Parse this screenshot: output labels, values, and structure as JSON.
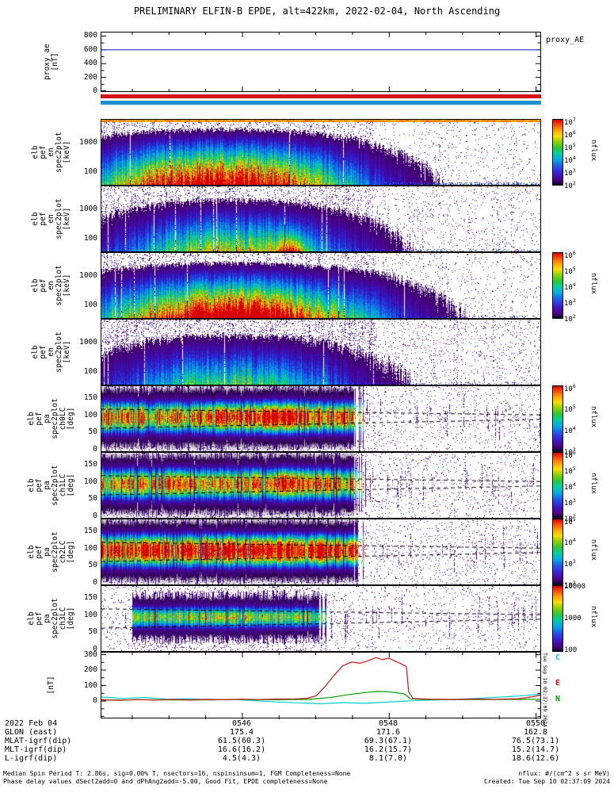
{
  "title": "PRELIMINARY ELFIN-B EPDE, alt=422km, 2022-02-04, North Ascending",
  "side_note": "Tue Sep 10 02:37:09 2024",
  "footer": {
    "left_line1": "Median Spin Period T: 2.86s, sig=0.00% T, nsectors=16, nspinsinsum=1, FGM Completeness=None",
    "left_line2": "Phase delay values dSect2add=0 and dPhAng2add=-5.00, Good Fit, EPDE completeness=None",
    "right_line1": "nflux: #/(cm^2 s sr MeV)",
    "right_line2": "Created: Tue Sep 10 02:37:09 2024"
  },
  "xaxis": {
    "date": "2022 Feb 04",
    "time_ticks": [
      "0546",
      "0548",
      "0550"
    ],
    "rows": [
      {
        "label": "GLON (east)",
        "values": [
          "175.4",
          "171.6",
          "162.8"
        ]
      },
      {
        "label": "MLAT-igrf(dip)",
        "values": [
          "61.5(60.3)",
          "69.3(67.1)",
          "76.5(73.1)"
        ]
      },
      {
        "label": "MLT-igrf(dip)",
        "values": [
          "16.6(16.2)",
          "16.2(15.7)",
          "15.2(14.7)"
        ]
      },
      {
        "label": "L-igrf(dip)",
        "values": [
          "4.5(4.3)",
          "8.1(7.0)",
          "18.6(12.6)"
        ]
      }
    ]
  },
  "chart_data": {
    "type": "multi-panel: line plots + energy/pitch-angle heatmap spectrograms",
    "time_range": [
      "0544",
      "0550"
    ],
    "colorbar_units": "nflux",
    "proxy_panel": {
      "right_label": "proxy_AE",
      "ylabel_lines": [
        "proxy_ae",
        "[nT]"
      ],
      "y_range": [
        0,
        850
      ],
      "yticks": [
        {
          "label": "800",
          "y": 4.4
        },
        {
          "label": "600",
          "y": 21.8
        },
        {
          "label": "400",
          "y": 39.2
        },
        {
          "label": "200",
          "y": 56.6
        },
        {
          "label": "0",
          "y": 73.5
        }
      ],
      "series": [
        {
          "name": "proxy_AE",
          "color": "#2233cc",
          "points": [
            [
              0,
              600
            ],
            [
              1,
              600
            ]
          ]
        }
      ]
    },
    "bars": [
      {
        "name": "red-epoch-bar",
        "color": "#d41414"
      },
      {
        "name": "blue-epoch-bar",
        "color": "#1f8fd0"
      }
    ],
    "spectrograms": [
      {
        "id": "en-ch0",
        "kind": "energy",
        "ylabel_lines": [
          "elb",
          "pef",
          "en",
          "spec2plot",
          "[keV]"
        ],
        "y_range_keV": [
          40,
          6300
        ],
        "yticks": [
          {
            "label": "1000",
            "y": 29
          },
          {
            "label": "100",
            "y": 66
          }
        ],
        "colorbar": {
          "labels": [
            "10^7",
            "10^6",
            "10^5",
            "10^4",
            "10^3",
            "10^2"
          ],
          "title": "nflux"
        },
        "render": {
          "seed": 101,
          "amp": 1.05,
          "xc": 0.27,
          "xw": 0.2,
          "topStripe": true,
          "topDots": 0,
          "noiseHi": 0.1,
          "noiseLo": 0.03,
          "noiseSplit": 0.62,
          "bottomTrail": 0.35,
          "hotspots": []
        }
      },
      {
        "id": "en-ch1",
        "kind": "energy",
        "ylabel_lines": [
          "elb",
          "pef",
          "en",
          "spec2plot",
          "[keV]"
        ],
        "y_range_keV": [
          40,
          6300
        ],
        "yticks": [
          {
            "label": "1000",
            "y": 29
          },
          {
            "label": "100",
            "y": 66
          }
        ],
        "colorbar": null,
        "render": {
          "seed": 202,
          "amp": 0.58,
          "xc": 0.3,
          "xw": 0.18,
          "topStripe": false,
          "topDots": 0.1,
          "noiseHi": 0.12,
          "noiseLo": 0.04,
          "noiseSplit": 0.62,
          "bottomTrail": 0.18,
          "hotspots": [
            {
              "xc": 0.43,
              "xw": 0.022,
              "amp": 0.6
            }
          ]
        }
      },
      {
        "id": "en-ch2",
        "kind": "energy",
        "ylabel_lines": [
          "elb",
          "pef",
          "en",
          "spec2plot",
          "[keV]"
        ],
        "y_range_keV": [
          40,
          6300
        ],
        "yticks": [
          {
            "label": "1000",
            "y": 29
          },
          {
            "label": "100",
            "y": 66
          }
        ],
        "colorbar": {
          "labels": [
            "10^6",
            "10^5",
            "10^4",
            "10^3",
            "10^2"
          ],
          "title": "nflux"
        },
        "render": {
          "seed": 303,
          "amp": 1.0,
          "xc": 0.3,
          "xw": 0.21,
          "topStripe": false,
          "topDots": 0.05,
          "noiseHi": 0.11,
          "noiseLo": 0.035,
          "noiseSplit": 0.62,
          "bottomTrail": 0.15,
          "hotspots": [
            {
              "xc": 0.32,
              "xw": 0.09,
              "amp": 0.3
            }
          ]
        }
      },
      {
        "id": "en-ch3",
        "kind": "energy",
        "ylabel_lines": [
          "elb",
          "pef",
          "en",
          "spec2plot",
          "[keV]"
        ],
        "y_range_keV": [
          40,
          6300
        ],
        "yticks": [
          {
            "label": "1000",
            "y": 29
          },
          {
            "label": "100",
            "y": 66
          }
        ],
        "colorbar": null,
        "render": {
          "seed": 404,
          "amp": 0.46,
          "xc": 0.3,
          "xw": 0.19,
          "topStripe": false,
          "topDots": 0.04,
          "noiseHi": 0.14,
          "noiseLo": 0.05,
          "noiseSplit": 0.62,
          "bottomTrail": 0.1,
          "hotspots": []
        }
      },
      {
        "id": "pa-ch0LC",
        "kind": "pa",
        "ylabel_lines": [
          "elb",
          "pef",
          "pa",
          "spec2plot",
          "ch0LC",
          "[deg]"
        ],
        "y_range_deg": [
          -10,
          184
        ],
        "yticks": [
          {
            "label": "150",
            "y": 15
          },
          {
            "label": "100",
            "y": 36.6
          },
          {
            "label": "50",
            "y": 58.3
          },
          {
            "label": "0",
            "y": 79.9
          }
        ],
        "colorbar": {
          "labels": [
            "10^6",
            "10^5",
            "10^4",
            "10^3"
          ],
          "title": "nflux"
        },
        "render": {
          "seed": 505,
          "amp": 0.92,
          "yc": 39,
          "yh": 12,
          "xStart": 0,
          "xEnd": 0.585,
          "pedHalf": 37,
          "outDensity": 0.05,
          "hotspots": [
            {
              "xc": 0.4,
              "xw": 0.05,
              "amp": 0.28
            }
          ],
          "lc1": [
            118,
            101
          ],
          "lc2": [
            62,
            88
          ]
        }
      },
      {
        "id": "pa-ch1LC",
        "kind": "pa",
        "ylabel_lines": [
          "elb",
          "pef",
          "pa",
          "spec2plot",
          "ch1LC",
          "[deg]"
        ],
        "y_range_deg": [
          -10,
          184
        ],
        "yticks": [
          {
            "label": "150",
            "y": 15
          },
          {
            "label": "100",
            "y": 36.6
          },
          {
            "label": "50",
            "y": 58.3
          },
          {
            "label": "0",
            "y": 79.9
          }
        ],
        "colorbar": {
          "labels": [
            "10^6",
            "10^5",
            "10^4",
            "10^3",
            "10^2"
          ],
          "title": "nflux"
        },
        "render": {
          "seed": 606,
          "amp": 0.85,
          "yc": 39,
          "yh": 12,
          "xStart": 0,
          "xEnd": 0.585,
          "pedHalf": 37,
          "outDensity": 0.05,
          "hotspots": [
            {
              "xc": 0.42,
              "xw": 0.04,
              "amp": 0.22
            }
          ],
          "lc1": [
            118,
            101
          ],
          "lc2": [
            62,
            88
          ]
        }
      },
      {
        "id": "pa-ch2LC",
        "kind": "pa",
        "ylabel_lines": [
          "elb",
          "pef",
          "pa",
          "spec2plot",
          "ch2LC",
          "[deg]"
        ],
        "y_range_deg": [
          -10,
          184
        ],
        "yticks": [
          {
            "label": "150",
            "y": 15
          },
          {
            "label": "100",
            "y": 36.6
          },
          {
            "label": "50",
            "y": 58.3
          },
          {
            "label": "0",
            "y": 79.9
          }
        ],
        "colorbar": {
          "labels": [
            "10^5",
            "10^4",
            "10^3",
            "10^2"
          ],
          "title": "nflux"
        },
        "render": {
          "seed": 707,
          "amp": 1.0,
          "yc": 39,
          "yh": 12,
          "xStart": 0,
          "xEnd": 0.585,
          "pedHalf": 37,
          "outDensity": 0.05,
          "hotspots": [
            {
              "xc": 0.3,
              "xw": 0.12,
              "amp": 0.25
            }
          ],
          "lc1": [
            118,
            101
          ],
          "lc2": [
            62,
            88
          ]
        }
      },
      {
        "id": "pa-ch3LC",
        "kind": "pa",
        "ylabel_lines": [
          "elb",
          "pef",
          "pa",
          "spec2plot",
          "ch3LC",
          "[deg]"
        ],
        "y_range_deg": [
          -10,
          184
        ],
        "yticks": [
          {
            "label": "150",
            "y": 15
          },
          {
            "label": "100",
            "y": 36.6
          },
          {
            "label": "50",
            "y": 58.3
          },
          {
            "label": "0",
            "y": 79.9
          }
        ],
        "colorbar": {
          "labels": [
            "10000",
            "1000",
            "100"
          ],
          "title": "nflux"
        },
        "render": {
          "seed": 808,
          "amp": 0.58,
          "yc": 39,
          "yh": 8.5,
          "xStart": 0.07,
          "xEnd": 0.5,
          "pedHalf": 30,
          "outDensity": 0.04,
          "hotspots": [
            {
              "xc": 0.3,
              "xw": 0.08,
              "amp": 0.12
            }
          ],
          "lc1": [
            118,
            101
          ],
          "lc2": [
            62,
            88
          ]
        }
      }
    ],
    "line_panel": {
      "id": "fgm-line",
      "ylabel_lines": [
        "[nT]"
      ],
      "y_range_nT": [
        -110,
        310
      ],
      "yticks": [
        {
          "label": "300",
          "y": 2.5
        },
        {
          "label": "200",
          "y": 22
        },
        {
          "label": "100",
          "y": 41.5
        },
        {
          "label": "0",
          "y": 61
        }
      ],
      "legend": [
        {
          "label": "C",
          "color": "#00cdcd",
          "top": 824
        },
        {
          "label": "E",
          "color": "#d21414",
          "top": 856
        },
        {
          "label": "N",
          "color": "#00a000",
          "top": 876
        }
      ],
      "series": [
        {
          "name": "C",
          "color": "#00cdcd",
          "points": [
            [
              0,
              26
            ],
            [
              0.05,
              17
            ],
            [
              0.1,
              23
            ],
            [
              0.15,
              11
            ],
            [
              0.2,
              15
            ],
            [
              0.25,
              7
            ],
            [
              0.3,
              11
            ],
            [
              0.35,
              2
            ],
            [
              0.4,
              -6
            ],
            [
              0.45,
              -12
            ],
            [
              0.5,
              -18
            ],
            [
              0.55,
              -10
            ],
            [
              0.6,
              -15
            ],
            [
              0.65,
              -7
            ],
            [
              0.7,
              1
            ],
            [
              0.75,
              6
            ],
            [
              0.8,
              10
            ],
            [
              0.85,
              16
            ],
            [
              0.9,
              24
            ],
            [
              0.95,
              32
            ],
            [
              1,
              44
            ]
          ]
        },
        {
          "name": "N",
          "color": "#00a000",
          "points": [
            [
              0,
              6
            ],
            [
              0.1,
              8
            ],
            [
              0.2,
              6
            ],
            [
              0.3,
              9
            ],
            [
              0.4,
              8
            ],
            [
              0.47,
              10
            ],
            [
              0.52,
              22
            ],
            [
              0.56,
              40
            ],
            [
              0.6,
              55
            ],
            [
              0.63,
              62
            ],
            [
              0.66,
              58
            ],
            [
              0.69,
              46
            ],
            [
              0.705,
              14
            ],
            [
              0.75,
              8
            ],
            [
              0.85,
              9
            ],
            [
              0.95,
              10
            ],
            [
              1,
              12
            ]
          ]
        },
        {
          "name": "E",
          "color": "#d21414",
          "points": [
            [
              0,
              8
            ],
            [
              0.04,
              4
            ],
            [
              0.08,
              9
            ],
            [
              0.12,
              6
            ],
            [
              0.16,
              10
            ],
            [
              0.2,
              7
            ],
            [
              0.24,
              11
            ],
            [
              0.28,
              8
            ],
            [
              0.32,
              12
            ],
            [
              0.36,
              9
            ],
            [
              0.4,
              13
            ],
            [
              0.44,
              14
            ],
            [
              0.47,
              18
            ],
            [
              0.49,
              35
            ],
            [
              0.51,
              95
            ],
            [
              0.53,
              165
            ],
            [
              0.55,
              228
            ],
            [
              0.57,
              252
            ],
            [
              0.59,
              244
            ],
            [
              0.61,
              263
            ],
            [
              0.625,
              281
            ],
            [
              0.64,
              268
            ],
            [
              0.655,
              277
            ],
            [
              0.67,
              257
            ],
            [
              0.685,
              238
            ],
            [
              0.695,
              222
            ],
            [
              0.7,
              60
            ],
            [
              0.71,
              16
            ],
            [
              0.75,
              12
            ],
            [
              0.8,
              10
            ],
            [
              0.85,
              13
            ],
            [
              0.9,
              11
            ],
            [
              0.95,
              15
            ],
            [
              0.98,
              26
            ],
            [
              1,
              38
            ]
          ]
        }
      ]
    }
  }
}
